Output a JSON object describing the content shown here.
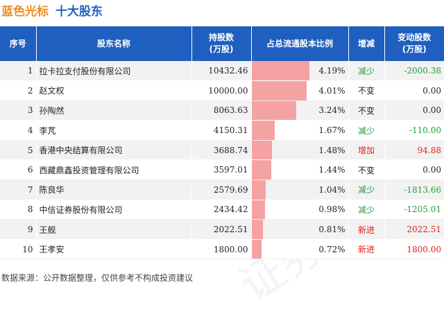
{
  "header": {
    "stock_name": "蓝色光标",
    "subtitle": "十大股东"
  },
  "table": {
    "columns": [
      "序号",
      "股东名称",
      "持股数\n(万股)",
      "占总流通股本比例",
      "增减",
      "变动股数\n(万股)"
    ],
    "rows": [
      {
        "idx": "1",
        "name": "拉卡拉支付股份有限公司",
        "shares": "10432.46",
        "ratio": "4.19%",
        "ratio_value": 4.19,
        "change": "减少",
        "change_type": "dec",
        "delta": "-2000.38"
      },
      {
        "idx": "2",
        "name": "赵文权",
        "shares": "10000.00",
        "ratio": "4.01%",
        "ratio_value": 4.01,
        "change": "不变",
        "change_type": "same",
        "delta": "0.00"
      },
      {
        "idx": "3",
        "name": "孙陶然",
        "shares": "8063.63",
        "ratio": "3.24%",
        "ratio_value": 3.24,
        "change": "不变",
        "change_type": "same",
        "delta": "0.00"
      },
      {
        "idx": "4",
        "name": "李芃",
        "shares": "4150.31",
        "ratio": "1.67%",
        "ratio_value": 1.67,
        "change": "减少",
        "change_type": "dec",
        "delta": "-110.00"
      },
      {
        "idx": "5",
        "name": "香港中央结算有限公司",
        "shares": "3688.74",
        "ratio": "1.48%",
        "ratio_value": 1.48,
        "change": "增加",
        "change_type": "inc",
        "delta": "94.88"
      },
      {
        "idx": "6",
        "name": "西藏鼎鑫投资管理有限公司",
        "shares": "3597.01",
        "ratio": "1.44%",
        "ratio_value": 1.44,
        "change": "不变",
        "change_type": "same",
        "delta": "0.00"
      },
      {
        "idx": "7",
        "name": "陈良华",
        "shares": "2579.69",
        "ratio": "1.04%",
        "ratio_value": 1.04,
        "change": "减少",
        "change_type": "dec",
        "delta": "-1813.66"
      },
      {
        "idx": "8",
        "name": "中信证券股份有限公司",
        "shares": "2434.42",
        "ratio": "0.98%",
        "ratio_value": 0.98,
        "change": "减少",
        "change_type": "dec",
        "delta": "-1205.01"
      },
      {
        "idx": "9",
        "name": "王舰",
        "shares": "2022.51",
        "ratio": "0.81%",
        "ratio_value": 0.81,
        "change": "新进",
        "change_type": "new",
        "delta": "2022.51"
      },
      {
        "idx": "10",
        "name": "王孝安",
        "shares": "1800.00",
        "ratio": "0.72%",
        "ratio_value": 0.72,
        "change": "新进",
        "change_type": "new",
        "delta": "1800.00"
      }
    ]
  },
  "colors": {
    "header_bg": "#1f5fbf",
    "bar": "#f5a2a3",
    "decrease": "#1f9d3a",
    "increase": "#e0201b",
    "stock_name": "#f08c1e",
    "subtitle": "#1f5fbf"
  },
  "footer": {
    "source": "数据来源：公开数据整理，仅供参考不构成投资建议"
  }
}
